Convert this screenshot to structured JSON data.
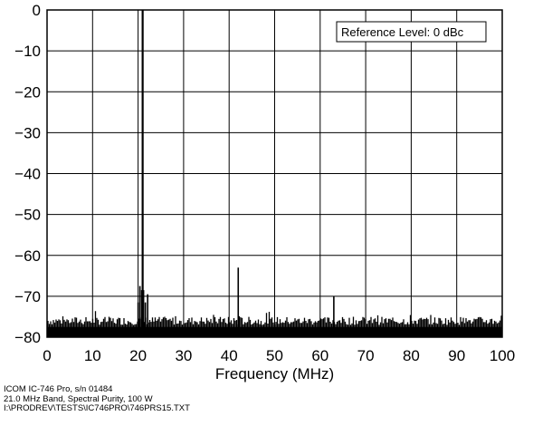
{
  "chart_data": {
    "type": "line",
    "title": "",
    "xlabel": "Frequency (MHz)",
    "ylabel": "",
    "xlim": [
      0,
      100
    ],
    "ylim": [
      -80,
      0
    ],
    "x_ticks": [
      "0",
      "10",
      "20",
      "30",
      "40",
      "50",
      "60",
      "70",
      "80",
      "90",
      "100"
    ],
    "y_ticks": [
      "0",
      "−10",
      "−20",
      "−30",
      "−40",
      "−50",
      "−60",
      "−70",
      "−80"
    ],
    "grid": true,
    "annotation": "Reference Level: 0 dBc",
    "noise_floor_dbc": [
      -77,
      -75
    ],
    "series": [
      {
        "x": [
          20.0,
          20.4,
          20.8,
          21.0,
          21.2,
          21.6,
          22.1,
          42.0,
          63.0
        ],
        "values": [
          -71.5,
          -67.5,
          -68.5,
          0,
          -68.5,
          -71.5,
          -69.5,
          -63,
          -70
        ]
      }
    ],
    "colors": {
      "trace": "#000000",
      "grid": "#000000"
    }
  },
  "footer": {
    "line1": "ICOM IC-746 Pro, s/n 01484",
    "line2": "21.0 MHz Band, Spectral Purity, 100 W",
    "line3": "I:\\PRODREV\\TESTS\\IC746PRO\\746PRS15.TXT"
  }
}
